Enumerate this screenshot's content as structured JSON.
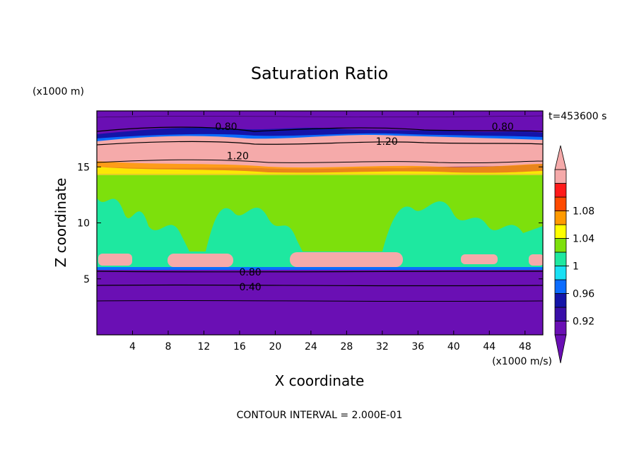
{
  "chart_data": {
    "type": "heatmap",
    "title": "Saturation Ratio",
    "xlabel": "X coordinate",
    "ylabel": "Z coordinate",
    "x_units": "(x1000 m/s)",
    "y_units": "(x1000 m)",
    "time_label": "t=453600 s",
    "xlim": [
      0,
      50
    ],
    "ylim": [
      0,
      20
    ],
    "x_ticks": [
      4,
      8,
      12,
      16,
      20,
      24,
      28,
      32,
      36,
      40,
      44,
      48
    ],
    "y_ticks": [
      5,
      10,
      15
    ],
    "contour_interval_text": "CONTOUR INTERVAL = 2.000E-01",
    "contour_labels": [
      {
        "text": "0.80",
        "x": 14.5,
        "y": 18.6
      },
      {
        "text": "0.80",
        "x": 45.5,
        "y": 18.6
      },
      {
        "text": "1.20",
        "x": 32.5,
        "y": 17.3
      },
      {
        "text": "1.20",
        "x": 15.8,
        "y": 16.0
      },
      {
        "text": "0.80",
        "x": 17.2,
        "y": 5.6
      },
      {
        "text": "0.40",
        "x": 17.2,
        "y": 4.3
      }
    ],
    "colorbar": {
      "levels": [
        0.92,
        0.94,
        0.96,
        0.98,
        1.0,
        1.02,
        1.04,
        1.06,
        1.08
      ],
      "tick_labels": [
        "0.92",
        "0.96",
        "1",
        "1.04",
        "1.08"
      ],
      "colors": [
        "#6a0fb4",
        "#3a0fa8",
        "#1414a8",
        "#0b6cff",
        "#19e0f4",
        "#1ee8a0",
        "#7de00c",
        "#ffff00",
        "#ff9a00",
        "#ff4a00",
        "#ff1a1a",
        "#f5aaaa"
      ],
      "extend": "both"
    },
    "layers": [
      {
        "range": [
          0,
          5.8
        ],
        "value": "<0.92",
        "color": "#6a0fb4"
      },
      {
        "range": [
          5.8,
          6.3
        ],
        "value": "0.96-1.00",
        "color": "#1ee8a0"
      },
      {
        "range": [
          6.3,
          7.3
        ],
        "value": ">1.10 (bands)",
        "color": "#f5aaaa"
      },
      {
        "range": [
          7.3,
          15.0
        ],
        "value": "1.00-1.02",
        "color": "#7de00c"
      },
      {
        "range": [
          15.0,
          17.5
        ],
        "value": ">1.10",
        "color": "#f5aaaa"
      },
      {
        "range": [
          17.5,
          18.3
        ],
        "value": "0.92-0.98",
        "color": "#1414a8"
      },
      {
        "range": [
          18.3,
          20.0
        ],
        "value": "<0.92",
        "color": "#6a0fb4"
      }
    ],
    "grid": false
  }
}
